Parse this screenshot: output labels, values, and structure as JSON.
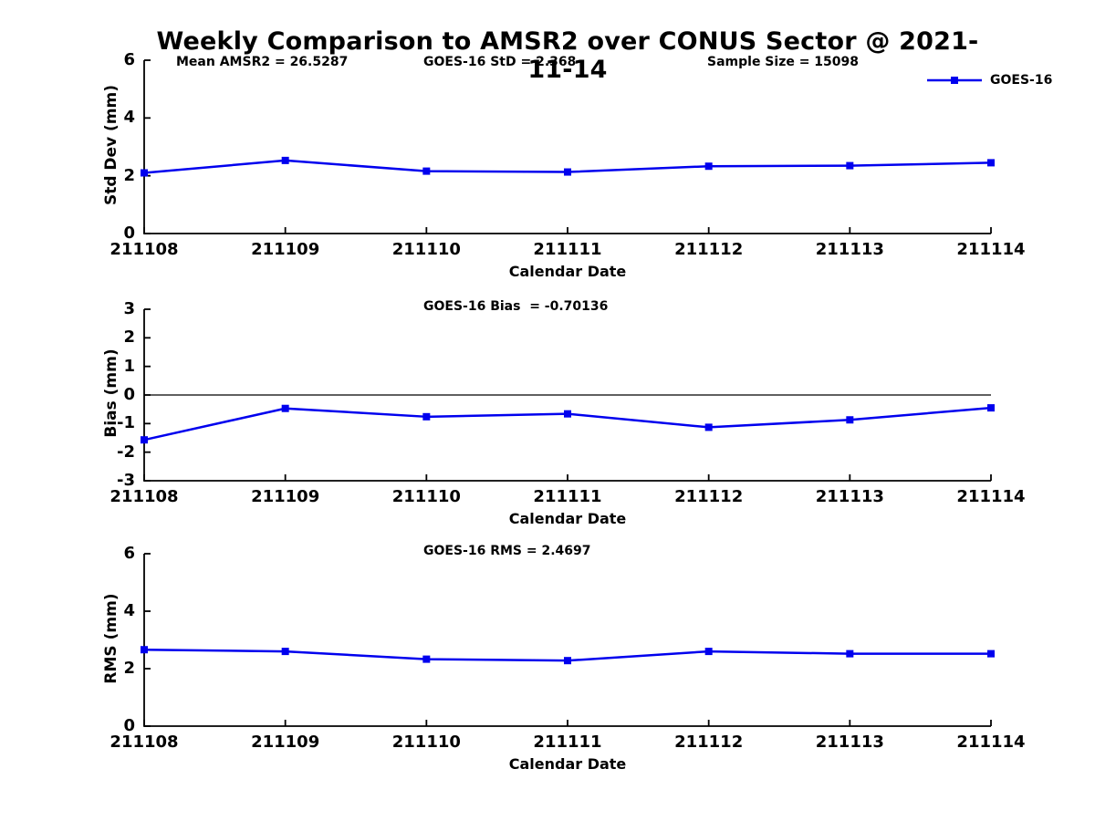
{
  "title": "Weekly Comparison to AMSR2 over CONUS Sector @ 2021-11-14",
  "header_stats": [
    {
      "label": "Mean AMSR2 = 26.5287"
    },
    {
      "label": "GOES-16 StD = 2.368"
    },
    {
      "label": "Sample Size = 15098"
    }
  ],
  "legend": {
    "label": "GOES-16",
    "color": "#0000EE",
    "marker": "square"
  },
  "xlabel": "Calendar Date",
  "categories": [
    "211108",
    "211109",
    "211110",
    "211111",
    "211112",
    "211113",
    "211114"
  ],
  "chart_data": [
    {
      "type": "line",
      "name": "std-dev",
      "ylabel": "Std Dev (mm)",
      "ylim": [
        0,
        6
      ],
      "yticks": [
        0,
        2,
        4,
        6
      ],
      "zero_line": false,
      "annotation": "",
      "categories": [
        "211108",
        "211109",
        "211110",
        "211111",
        "211112",
        "211113",
        "211114"
      ],
      "series": [
        {
          "name": "GOES-16",
          "values": [
            2.1,
            2.53,
            2.16,
            2.13,
            2.33,
            2.35,
            2.45
          ]
        }
      ]
    },
    {
      "type": "line",
      "name": "bias",
      "ylabel": "Bias (mm)",
      "ylim": [
        -3,
        3
      ],
      "yticks": [
        -3,
        -2,
        -1,
        0,
        1,
        2,
        3
      ],
      "zero_line": true,
      "annotation": "GOES-16 Bias  = -0.70136",
      "categories": [
        "211108",
        "211109",
        "211110",
        "211111",
        "211112",
        "211113",
        "211114"
      ],
      "series": [
        {
          "name": "GOES-16",
          "values": [
            -1.57,
            -0.47,
            -0.76,
            -0.66,
            -1.13,
            -0.87,
            -0.45
          ]
        }
      ]
    },
    {
      "type": "line",
      "name": "rms",
      "ylabel": "RMS (mm)",
      "ylim": [
        0,
        6
      ],
      "yticks": [
        0,
        2,
        4,
        6
      ],
      "zero_line": false,
      "annotation": "GOES-16 RMS = 2.4697",
      "categories": [
        "211108",
        "211109",
        "211110",
        "211111",
        "211112",
        "211113",
        "211114"
      ],
      "series": [
        {
          "name": "GOES-16",
          "values": [
            2.66,
            2.6,
            2.33,
            2.28,
            2.6,
            2.52,
            2.52
          ]
        }
      ]
    }
  ]
}
